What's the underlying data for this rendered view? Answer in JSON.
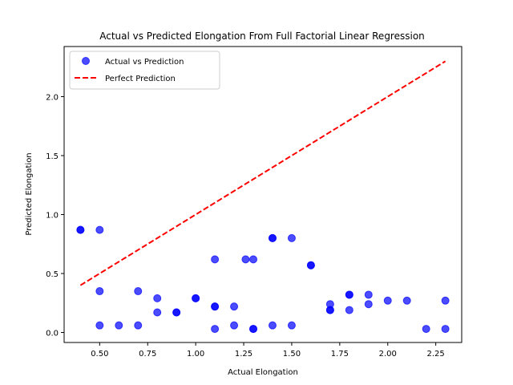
{
  "chart_data": {
    "type": "scatter",
    "title": "Actual vs Predicted Elongation From Full Factorial Linear Regression",
    "xlabel": "Actual Elongation",
    "ylabel": "Predicted Elongation",
    "xlim": [
      0.315,
      2.385
    ],
    "ylim": [
      -0.085,
      2.425
    ],
    "xticks": [
      0.5,
      0.75,
      1.0,
      1.25,
      1.5,
      1.75,
      2.0,
      2.25
    ],
    "xtick_labels": [
      "0.50",
      "0.75",
      "1.00",
      "1.25",
      "1.50",
      "1.75",
      "2.00",
      "2.25"
    ],
    "yticks": [
      0.0,
      0.5,
      1.0,
      1.5,
      2.0
    ],
    "ytick_labels": [
      "0.0",
      "0.5",
      "1.0",
      "1.5",
      "2.0"
    ],
    "grid": false,
    "legend_position": "top-left",
    "series": [
      {
        "name": "Actual vs Prediction",
        "kind": "scatter",
        "color": "#0000ff",
        "points": [
          [
            0.4,
            0.87
          ],
          [
            0.4,
            0.87
          ],
          [
            0.5,
            0.87
          ],
          [
            0.5,
            0.35
          ],
          [
            0.5,
            0.06
          ],
          [
            0.6,
            0.06
          ],
          [
            0.7,
            0.35
          ],
          [
            0.7,
            0.06
          ],
          [
            0.8,
            0.29
          ],
          [
            0.8,
            0.17
          ],
          [
            0.9,
            0.17
          ],
          [
            0.9,
            0.17
          ],
          [
            1.0,
            0.29
          ],
          [
            1.0,
            0.29
          ],
          [
            1.1,
            0.62
          ],
          [
            1.1,
            0.22
          ],
          [
            1.1,
            0.22
          ],
          [
            1.1,
            0.03
          ],
          [
            1.2,
            0.22
          ],
          [
            1.2,
            0.06
          ],
          [
            1.26,
            0.62
          ],
          [
            1.3,
            0.62
          ],
          [
            1.3,
            0.03
          ],
          [
            1.3,
            0.03
          ],
          [
            1.4,
            0.8
          ],
          [
            1.4,
            0.8
          ],
          [
            1.4,
            0.06
          ],
          [
            1.5,
            0.8
          ],
          [
            1.5,
            0.06
          ],
          [
            1.6,
            0.57
          ],
          [
            1.6,
            0.57
          ],
          [
            1.7,
            0.24
          ],
          [
            1.7,
            0.19
          ],
          [
            1.7,
            0.19
          ],
          [
            1.8,
            0.32
          ],
          [
            1.8,
            0.32
          ],
          [
            1.8,
            0.19
          ],
          [
            1.9,
            0.32
          ],
          [
            1.9,
            0.24
          ],
          [
            2.0,
            0.27
          ],
          [
            2.1,
            0.27
          ],
          [
            2.2,
            0.03
          ],
          [
            2.3,
            0.27
          ],
          [
            2.3,
            0.03
          ]
        ]
      },
      {
        "name": "Perfect Prediction",
        "kind": "line",
        "style": "dashed",
        "color": "#ff0000",
        "x": [
          0.4,
          2.3
        ],
        "y": [
          0.4,
          2.3
        ]
      }
    ]
  }
}
